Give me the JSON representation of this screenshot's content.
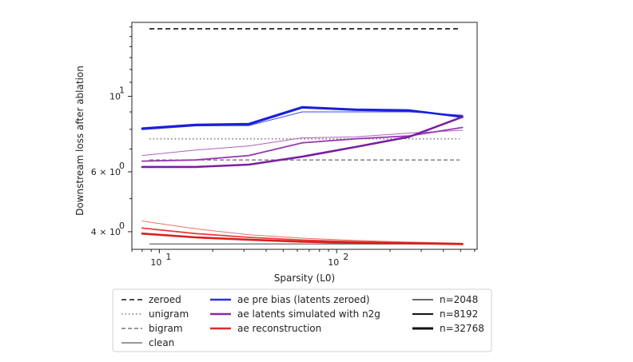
{
  "chart_data": {
    "type": "line",
    "xlabel": "Sparsity (L0)",
    "ylabel": "Downstream loss after ablation",
    "xscale": "log",
    "yscale": "log",
    "xlim": [
      7,
      620
    ],
    "ylim": [
      3.55,
      16.5
    ],
    "grid": false,
    "legend_position": "below",
    "x_ticks": [
      {
        "value": 10,
        "base": "10",
        "exp": "1"
      },
      {
        "value": 100,
        "base": "10",
        "exp": "2"
      }
    ],
    "y_ticks": [
      {
        "value": 4,
        "pre": "4 × 10",
        "exp": "0"
      },
      {
        "value": 6,
        "pre": "6 × 10",
        "exp": "0"
      },
      {
        "value": 10,
        "pre": "10",
        "exp": "1"
      }
    ],
    "baselines": [
      {
        "name": "zeroed",
        "y": 15.8,
        "dash": "6,4",
        "color": "#111111",
        "width": 1.6
      },
      {
        "name": "unigram",
        "y": 7.5,
        "dash": "1.5,3",
        "color": "#777777",
        "width": 1.4
      },
      {
        "name": "bigram",
        "y": 6.5,
        "dash": "5,3",
        "color": "#777777",
        "width": 1.4
      },
      {
        "name": "clean",
        "y": 3.68,
        "dash": "",
        "color": "#777777",
        "width": 1.4
      }
    ],
    "series": [
      {
        "group": "ae pre bias (latents zeroed)",
        "size": "n=2048",
        "color": "#3b46f0",
        "width": 1.0,
        "x": [
          8,
          16,
          32,
          64,
          128,
          256,
          512
        ],
        "y": [
          8.0,
          8.2,
          8.2,
          9.0,
          9.0,
          9.0,
          8.8
        ]
      },
      {
        "group": "ae pre bias (latents zeroed)",
        "size": "n=8192",
        "color": "#2a30e6",
        "width": 1.8,
        "x": [
          8,
          16,
          32,
          64,
          128,
          256,
          512
        ],
        "y": [
          8.0,
          8.2,
          8.25,
          9.25,
          9.1,
          9.05,
          8.75
        ]
      },
      {
        "group": "ae pre bias (latents zeroed)",
        "size": "n=32768",
        "color": "#1a1fd8",
        "width": 2.6,
        "x": [
          8,
          16,
          32,
          64,
          128,
          256,
          512
        ],
        "y": [
          8.05,
          8.25,
          8.3,
          9.3,
          9.15,
          9.1,
          8.7
        ]
      },
      {
        "group": "ae latents simulated with n2g",
        "size": "n=2048",
        "color": "#b060c0",
        "width": 1.0,
        "x": [
          8,
          16,
          32,
          64,
          128,
          256,
          512
        ],
        "y": [
          6.7,
          6.95,
          7.15,
          7.55,
          7.6,
          7.8,
          7.95
        ]
      },
      {
        "group": "ae latents simulated with n2g",
        "size": "n=8192",
        "color": "#9638ad",
        "width": 1.8,
        "x": [
          8,
          16,
          32,
          64,
          128,
          256,
          512
        ],
        "y": [
          6.45,
          6.5,
          6.7,
          7.3,
          7.5,
          7.65,
          8.1
        ]
      },
      {
        "group": "ae latents simulated with n2g",
        "size": "n=32768",
        "color": "#7a1fa0",
        "width": 2.6,
        "x": [
          8,
          16,
          32,
          64,
          128,
          256,
          512
        ],
        "y": [
          6.2,
          6.2,
          6.3,
          6.65,
          7.1,
          7.6,
          8.7
        ]
      },
      {
        "group": "ae reconstruction",
        "size": "n=2048",
        "color": "#f07060",
        "width": 1.0,
        "x": [
          8,
          16,
          32,
          64,
          128,
          256,
          512
        ],
        "y": [
          4.3,
          4.08,
          3.92,
          3.83,
          3.77,
          3.73,
          3.7
        ]
      },
      {
        "group": "ae reconstruction",
        "size": "n=8192",
        "color": "#e84040",
        "width": 1.8,
        "x": [
          8,
          16,
          32,
          64,
          128,
          256,
          512
        ],
        "y": [
          4.1,
          3.95,
          3.85,
          3.78,
          3.74,
          3.71,
          3.69
        ]
      },
      {
        "group": "ae reconstruction",
        "size": "n=32768",
        "color": "#d82020",
        "width": 2.6,
        "x": [
          8,
          16,
          32,
          64,
          128,
          256,
          512
        ],
        "y": [
          3.95,
          3.85,
          3.79,
          3.74,
          3.71,
          3.7,
          3.68
        ]
      }
    ],
    "legend": {
      "baselines": [
        {
          "label": "zeroed",
          "dash": "6,4",
          "color": "#111111"
        },
        {
          "label": "unigram",
          "dash": "1.5,3",
          "color": "#777777"
        },
        {
          "label": "bigram",
          "dash": "5,3",
          "color": "#777777"
        },
        {
          "label": "clean",
          "dash": "",
          "color": "#777777"
        }
      ],
      "methods": [
        {
          "label": "ae pre bias (latents zeroed)",
          "color": "#2a30e6"
        },
        {
          "label": "ae latents simulated with n2g",
          "color": "#8a2aa8"
        },
        {
          "label": "ae reconstruction",
          "color": "#e02a2a"
        }
      ],
      "sizes": [
        {
          "label": "n=2048",
          "width": 1.2
        },
        {
          "label": "n=8192",
          "width": 2.0
        },
        {
          "label": "n=32768",
          "width": 3.0
        }
      ]
    }
  }
}
